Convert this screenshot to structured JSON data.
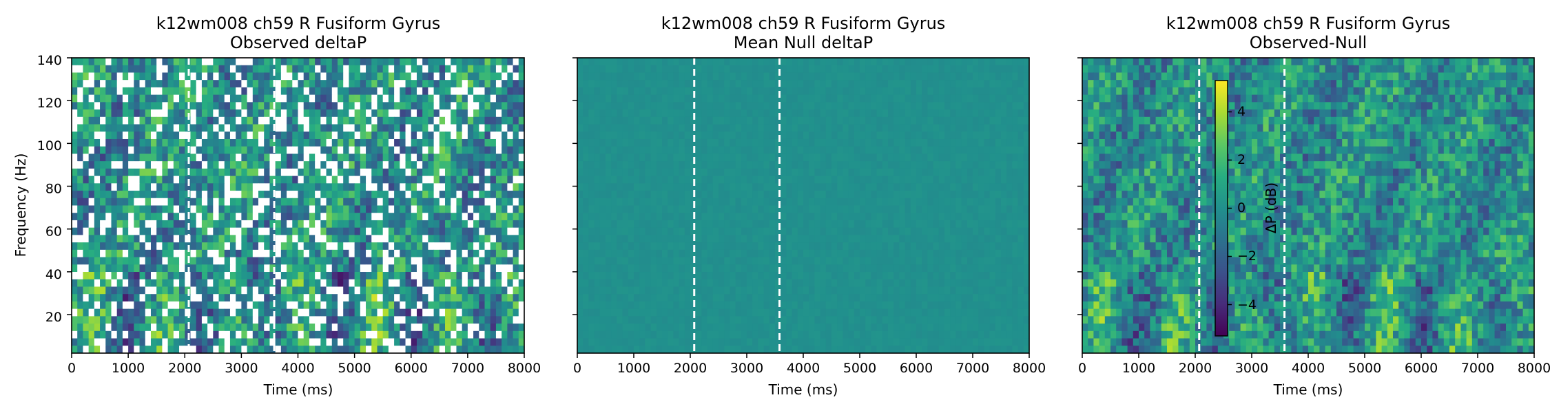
{
  "chart_data": [
    {
      "type": "heatmap",
      "title": "k12wm008 ch59 R Fusiform Gyrus",
      "subtitle": "Observed deltaP",
      "xlabel": "Time (ms)",
      "ylabel": "Frequency (Hz)",
      "xlim": [
        0,
        8000
      ],
      "ylim": [
        2,
        140
      ],
      "xticks": [
        0,
        1000,
        2000,
        3000,
        4000,
        5000,
        6000,
        7000,
        8000
      ],
      "yticks": [
        20,
        40,
        60,
        80,
        100,
        120,
        140
      ],
      "event_lines_ms": [
        2070,
        3580
      ],
      "colormap": "viridis",
      "color_range": [
        -5,
        5
      ],
      "masked_nonsignificant": true
    },
    {
      "type": "heatmap",
      "title": "k12wm008 ch59 R Fusiform Gyrus",
      "subtitle": "Mean Null deltaP",
      "xlabel": "Time (ms)",
      "ylabel": "",
      "xlim": [
        0,
        8000
      ],
      "ylim": [
        2,
        140
      ],
      "xticks": [
        0,
        1000,
        2000,
        3000,
        4000,
        5000,
        6000,
        7000,
        8000
      ],
      "yticks": [
        20,
        40,
        60,
        80,
        100,
        120,
        140
      ],
      "event_lines_ms": [
        2070,
        3580
      ],
      "colormap": "viridis",
      "color_range": [
        -5,
        5
      ],
      "approx_value_db": 0
    },
    {
      "type": "heatmap",
      "title": "k12wm008 ch59 R Fusiform Gyrus",
      "subtitle": "Observed-Null",
      "xlabel": "Time (ms)",
      "ylabel": "",
      "xlim": [
        0,
        8000
      ],
      "ylim": [
        2,
        140
      ],
      "xticks": [
        0,
        1000,
        2000,
        3000,
        4000,
        5000,
        6000,
        7000,
        8000
      ],
      "yticks": [
        20,
        40,
        60,
        80,
        100,
        120,
        140
      ],
      "event_lines_ms": [
        2070,
        3580
      ],
      "colormap": "viridis",
      "color_range": [
        -5,
        5
      ],
      "colorbar": {
        "label": "ΔP (dB)",
        "ticks": [
          4,
          2,
          0,
          -2,
          -4
        ],
        "tick_labels": [
          "4",
          "2",
          "0",
          "−2",
          "−4"
        ],
        "range": [
          -5.3,
          5.3
        ]
      }
    }
  ],
  "colors": {
    "viridis": [
      "#440154",
      "#472c7a",
      "#3b518b",
      "#2c718e",
      "#21908d",
      "#27ad81",
      "#5cc863",
      "#aadc32",
      "#fde725"
    ],
    "event_line": "#ffffff",
    "frame": "#000000"
  }
}
